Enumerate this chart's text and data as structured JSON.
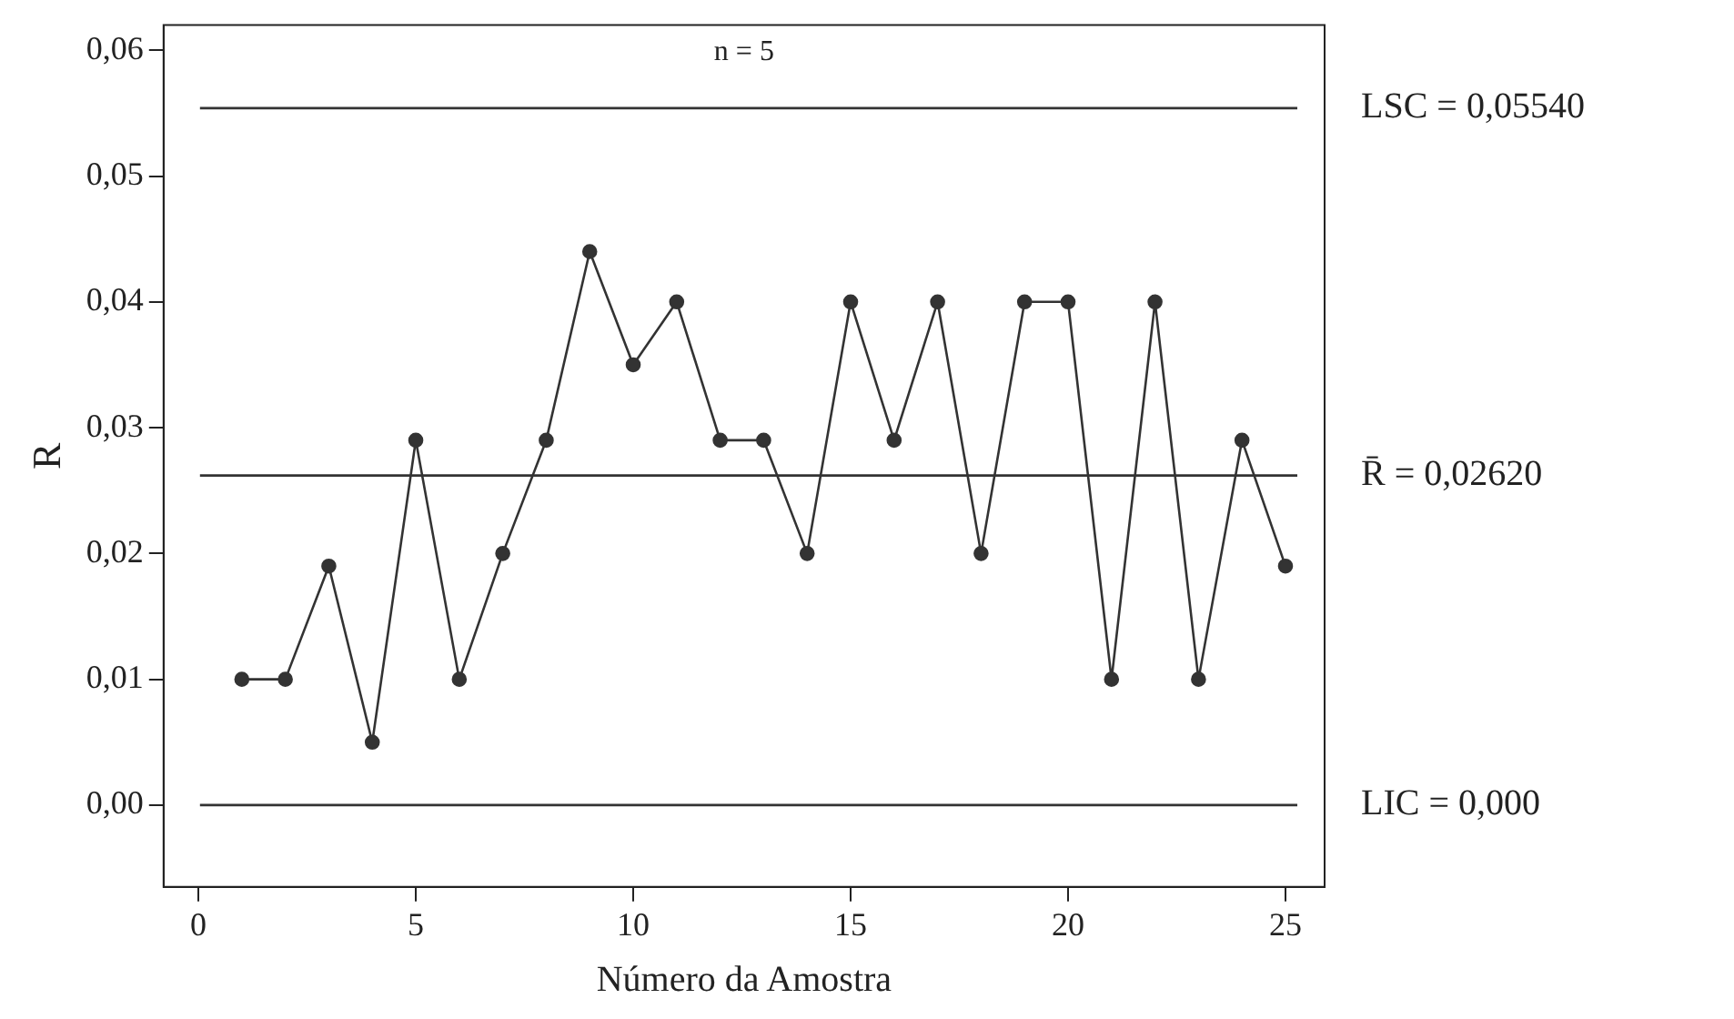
{
  "chart_data": {
    "type": "line",
    "xlabel": "Número da Amostra",
    "ylabel": "R",
    "x": [
      1,
      2,
      3,
      4,
      5,
      6,
      7,
      8,
      9,
      10,
      11,
      12,
      13,
      14,
      15,
      16,
      17,
      18,
      19,
      20,
      21,
      22,
      23,
      24,
      25
    ],
    "series": [
      {
        "color": "#333333",
        "values": [
          0.01,
          0.01,
          0.019,
          0.005,
          0.029,
          0.01,
          0.02,
          0.029,
          0.044,
          0.035,
          0.04,
          0.029,
          0.029,
          0.02,
          0.04,
          0.029,
          0.04,
          0.02,
          0.04,
          0.04,
          0.01,
          0.04,
          0.01,
          0.029,
          0.019
        ]
      }
    ],
    "xlim": [
      -0.8,
      25.9
    ],
    "ylim": [
      -0.0065,
      0.062
    ],
    "xticks": [
      0,
      5,
      10,
      15,
      20,
      25
    ],
    "yticks": [
      {
        "value": 0,
        "label": "0,00"
      },
      {
        "value": 0.01,
        "label": "0,01"
      },
      {
        "value": 0.02,
        "label": "0,02"
      },
      {
        "value": 0.03,
        "label": "0,03"
      },
      {
        "value": 0.04,
        "label": "0,04"
      },
      {
        "value": 0.05,
        "label": "0,05"
      },
      {
        "value": 0.06,
        "label": "0,06"
      }
    ],
    "ref_lines": [
      {
        "axis": "y",
        "value": 0.0554,
        "label": "LSC = 0,05540",
        "color": "#333333"
      },
      {
        "axis": "y",
        "value": 0.0262,
        "label": "R̄ = 0,02620",
        "color": "#333333"
      },
      {
        "axis": "y",
        "value": 0,
        "label": "LIC = 0,000",
        "color": "#333333"
      }
    ],
    "annotations": [
      "n = 5"
    ],
    "marker": "circle",
    "line_style": "solid",
    "grid": false,
    "legend": false
  }
}
